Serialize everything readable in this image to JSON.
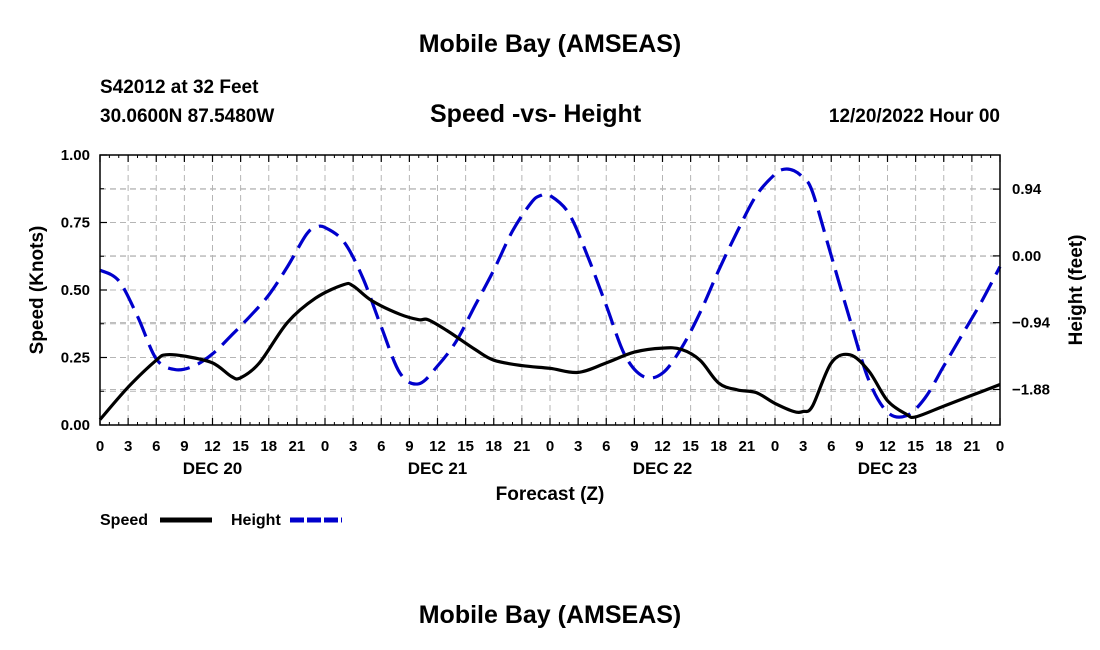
{
  "header": {
    "title": "Mobile Bay (AMSEAS)",
    "station": "S42012 at 32 Feet",
    "location": "30.0600N  87.5480W",
    "subtitle": "Speed -vs- Height",
    "datetime": "12/20/2022 Hour 00"
  },
  "footer": {
    "title": "Mobile Bay (AMSEAS)"
  },
  "chart_data": {
    "type": "line",
    "title": "Speed -vs- Height",
    "xlabel": "Forecast (Z)",
    "ylabel": "Speed (Knots)",
    "y2label": "Height (feet)",
    "xlim": [
      0,
      96
    ],
    "ylim": [
      0,
      1
    ],
    "y2lim": [
      -2.38,
      1.42
    ],
    "x_ticks": [
      0,
      3,
      6,
      9,
      12,
      15,
      18,
      21,
      24,
      27,
      30,
      33,
      36,
      39,
      42,
      45,
      48,
      51,
      54,
      57,
      60,
      63,
      66,
      69,
      72,
      75,
      78,
      81,
      84,
      87,
      90,
      93,
      96
    ],
    "x_tick_labels": [
      "0",
      "3",
      "6",
      "9",
      "12",
      "15",
      "18",
      "21",
      "0",
      "3",
      "6",
      "9",
      "12",
      "15",
      "18",
      "21",
      "0",
      "3",
      "6",
      "9",
      "12",
      "15",
      "18",
      "21",
      "0",
      "3",
      "6",
      "9",
      "12",
      "15",
      "18",
      "21",
      "0"
    ],
    "day_labels": [
      {
        "text": "DEC 20",
        "x": 12
      },
      {
        "text": "DEC 21",
        "x": 36
      },
      {
        "text": "DEC 22",
        "x": 60
      },
      {
        "text": "DEC 23",
        "x": 84
      }
    ],
    "y_ticks": [
      0,
      0.25,
      0.5,
      0.75,
      1.0
    ],
    "y_tick_labels": [
      "0.00",
      "0.25",
      "0.50",
      "0.75",
      "1.00"
    ],
    "y2_ticks": [
      0.94,
      0.0,
      -0.94,
      -1.88
    ],
    "y2_tick_labels": [
      "0.94",
      "0.00",
      "−0.94",
      "−1.88"
    ],
    "grid": true,
    "legend": [
      {
        "name": "Speed",
        "color": "#000000",
        "style": "solid"
      },
      {
        "name": "Height",
        "color": "#0000cc",
        "style": "dashed"
      }
    ],
    "series": [
      {
        "name": "Speed",
        "axis": "left",
        "color": "#000000",
        "x": [
          0,
          3,
          6,
          7,
          9,
          12,
          14,
          15,
          17,
          20,
          23,
          26,
          27,
          29,
          32,
          34,
          35,
          37,
          40,
          42,
          45,
          48,
          51,
          54,
          57,
          60,
          62,
          64,
          66,
          68,
          70,
          72,
          74,
          75,
          76,
          78,
          80,
          82,
          84,
          86,
          87,
          90,
          93,
          96
        ],
        "values": [
          0.02,
          0.14,
          0.24,
          0.26,
          0.255,
          0.23,
          0.18,
          0.175,
          0.23,
          0.38,
          0.47,
          0.52,
          0.515,
          0.46,
          0.41,
          0.39,
          0.39,
          0.35,
          0.28,
          0.24,
          0.22,
          0.21,
          0.195,
          0.23,
          0.27,
          0.285,
          0.28,
          0.24,
          0.155,
          0.13,
          0.12,
          0.08,
          0.05,
          0.05,
          0.07,
          0.23,
          0.26,
          0.2,
          0.09,
          0.04,
          0.03,
          0.07,
          0.11,
          0.15
        ]
      },
      {
        "name": "Height",
        "axis": "right",
        "color": "#0000cc",
        "x": [
          0,
          2,
          4,
          6,
          8,
          10,
          12,
          14,
          16,
          18,
          20,
          22,
          23,
          24,
          26,
          28,
          30,
          32,
          34,
          36,
          38,
          40,
          42,
          44,
          46,
          47,
          48,
          50,
          52,
          54,
          56,
          58,
          60,
          62,
          64,
          66,
          68,
          70,
          72,
          73,
          74,
          75,
          76,
          78,
          80,
          82,
          84,
          86,
          88,
          90,
          92,
          94,
          96
        ],
        "values": [
          -0.2,
          -0.35,
          -0.85,
          -1.45,
          -1.6,
          -1.55,
          -1.38,
          -1.12,
          -0.85,
          -0.55,
          -0.15,
          0.3,
          0.4,
          0.4,
          0.2,
          -0.3,
          -1.0,
          -1.65,
          -1.8,
          -1.55,
          -1.2,
          -0.7,
          -0.2,
          0.35,
          0.75,
          0.85,
          0.85,
          0.6,
          0.0,
          -0.7,
          -1.4,
          -1.7,
          -1.65,
          -1.3,
          -0.8,
          -0.2,
          0.35,
          0.85,
          1.15,
          1.22,
          1.2,
          1.1,
          0.9,
          0.0,
          -0.9,
          -1.75,
          -2.2,
          -2.25,
          -2.0,
          -1.55,
          -1.1,
          -0.65,
          -0.15
        ]
      }
    ]
  }
}
